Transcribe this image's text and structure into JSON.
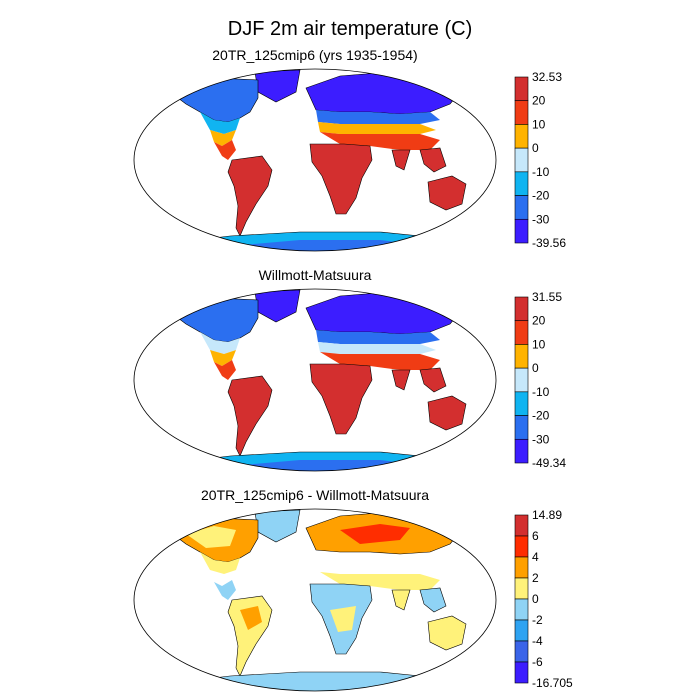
{
  "figure_title": "DJF 2m air temperature (C)",
  "chart_data": [
    {
      "type": "heatmap",
      "projection": "robinson",
      "title": "20TR_125cmip6 (yrs 1935-1954)",
      "variable": "2m air temperature",
      "units": "C",
      "colorbar": {
        "labels": [
          "32.53",
          "20",
          "10",
          "0",
          "-10",
          "-20",
          "-30",
          "-39.56"
        ],
        "max": 32.53,
        "min": -39.56,
        "colors": [
          "#d32f2f",
          "#f03c14",
          "#ffb300",
          "#c6e8fb",
          "#10b4f1",
          "#2b6ff0",
          "#3c1dff"
        ]
      }
    },
    {
      "type": "heatmap",
      "projection": "robinson",
      "title": "Willmott-Matsuura",
      "variable": "2m air temperature",
      "units": "C",
      "colorbar": {
        "labels": [
          "31.55",
          "20",
          "10",
          "0",
          "-10",
          "-20",
          "-30",
          "-49.34"
        ],
        "max": 31.55,
        "min": -49.34,
        "colors": [
          "#d32f2f",
          "#f03c14",
          "#ffb300",
          "#c6e8fb",
          "#10b4f1",
          "#2b6ff0",
          "#3c1dff"
        ]
      }
    },
    {
      "type": "heatmap",
      "projection": "robinson",
      "title": "20TR_125cmip6 - Willmott-Matsuura",
      "variable": "2m air temperature difference",
      "units": "C",
      "colorbar": {
        "labels": [
          "14.89",
          "6",
          "4",
          "2",
          "0",
          "-2",
          "-4",
          "-6",
          "-16.705"
        ],
        "max": 14.89,
        "min": -16.705,
        "colors": [
          "#d32f2f",
          "#ff2d00",
          "#ffa000",
          "#fff27a",
          "#8fd3f5",
          "#2ea3f2",
          "#3a64e9",
          "#3c1dff"
        ]
      }
    }
  ]
}
